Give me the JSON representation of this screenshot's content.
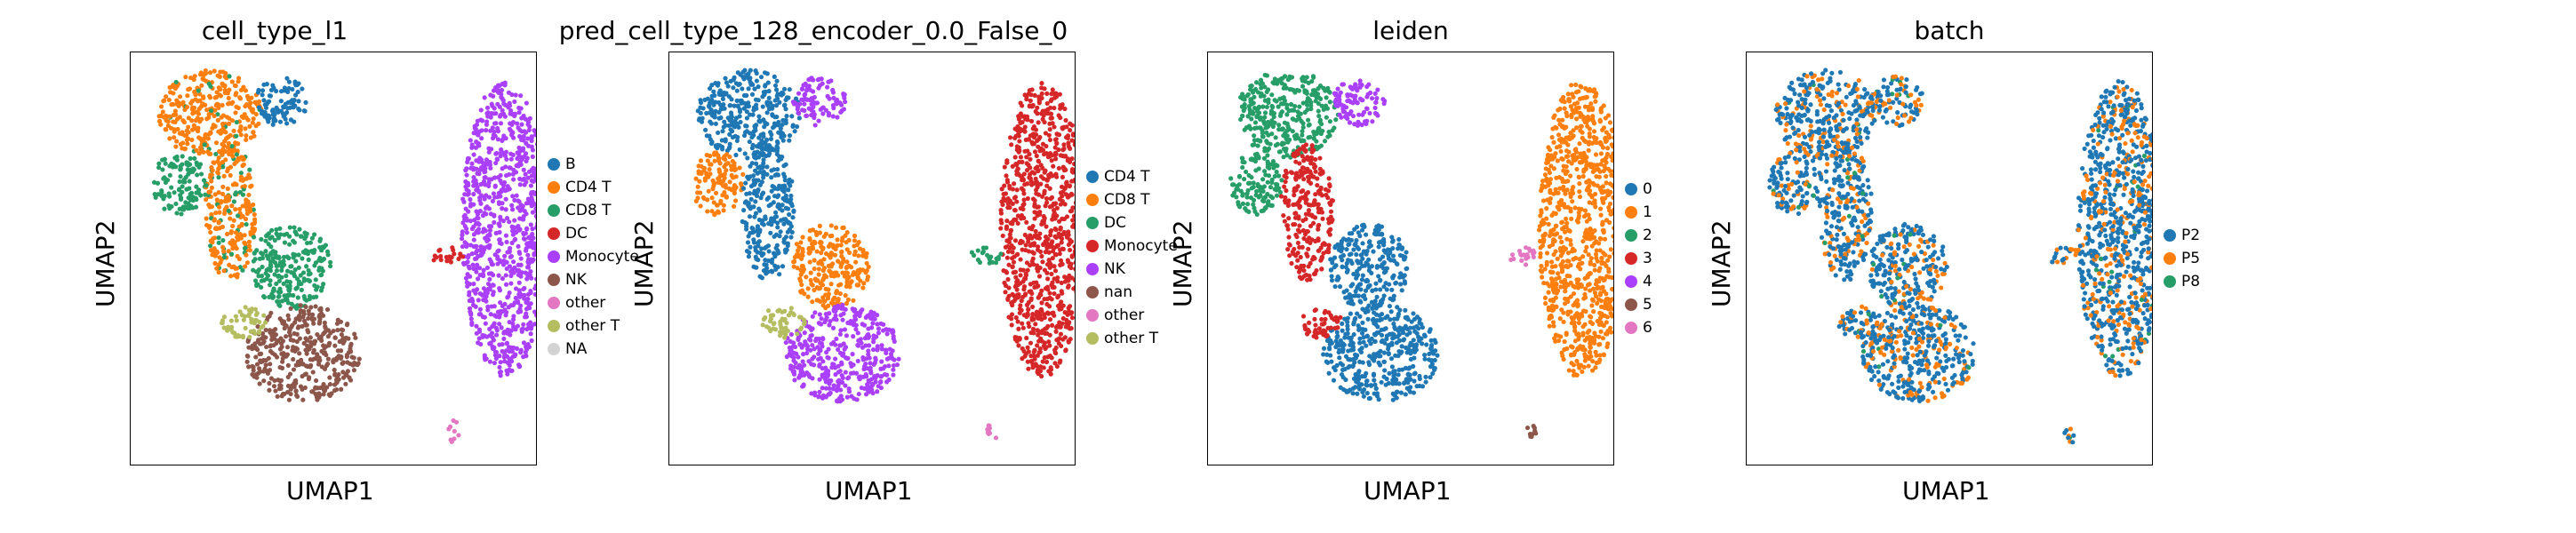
{
  "chart_data": [
    {
      "type": "scatter",
      "title": "cell_type_l1",
      "xlabel": "UMAP1",
      "ylabel": "UMAP2",
      "legend_title": "",
      "legend_placement": "right",
      "categories": [
        {
          "name": "B",
          "color": "#1f77b4"
        },
        {
          "name": "CD4 T",
          "color": "#ff7f0e"
        },
        {
          "name": "CD8 T",
          "color": "#279e68"
        },
        {
          "name": "DC",
          "color": "#d62728"
        },
        {
          "name": "Monocyte",
          "color": "#aa40fc"
        },
        {
          "name": "NK",
          "color": "#8c564b"
        },
        {
          "name": "other",
          "color": "#e377c2"
        },
        {
          "name": "other T",
          "color": "#b5bd61"
        },
        {
          "name": "NA",
          "color": "#d3d3d3"
        }
      ]
    },
    {
      "type": "scatter",
      "title": "pred_cell_type_128_encoder_0.0_False_0",
      "xlabel": "UMAP1",
      "ylabel": "UMAP2",
      "legend_title": "",
      "legend_placement": "right",
      "categories": [
        {
          "name": "CD4 T",
          "color": "#1f77b4"
        },
        {
          "name": "CD8 T",
          "color": "#ff7f0e"
        },
        {
          "name": "DC",
          "color": "#279e68"
        },
        {
          "name": "Monocyte",
          "color": "#d62728"
        },
        {
          "name": "NK",
          "color": "#aa40fc"
        },
        {
          "name": "nan",
          "color": "#8c564b"
        },
        {
          "name": "other",
          "color": "#e377c2"
        },
        {
          "name": "other T",
          "color": "#b5bd61"
        }
      ]
    },
    {
      "type": "scatter",
      "title": "leiden",
      "xlabel": "UMAP1",
      "ylabel": "UMAP2",
      "legend_title": "",
      "legend_placement": "right",
      "categories": [
        {
          "name": "0",
          "color": "#1f77b4"
        },
        {
          "name": "1",
          "color": "#ff7f0e"
        },
        {
          "name": "2",
          "color": "#279e68"
        },
        {
          "name": "3",
          "color": "#d62728"
        },
        {
          "name": "4",
          "color": "#aa40fc"
        },
        {
          "name": "5",
          "color": "#8c564b"
        },
        {
          "name": "6",
          "color": "#e377c2"
        }
      ]
    },
    {
      "type": "scatter",
      "title": "batch",
      "xlabel": "UMAP1",
      "ylabel": "UMAP2",
      "legend_title": "",
      "legend_placement": "right",
      "categories": [
        {
          "name": "P2",
          "color": "#1f77b4"
        },
        {
          "name": "P5",
          "color": "#ff7f0e"
        },
        {
          "name": "P8",
          "color": "#279e68"
        }
      ]
    }
  ]
}
